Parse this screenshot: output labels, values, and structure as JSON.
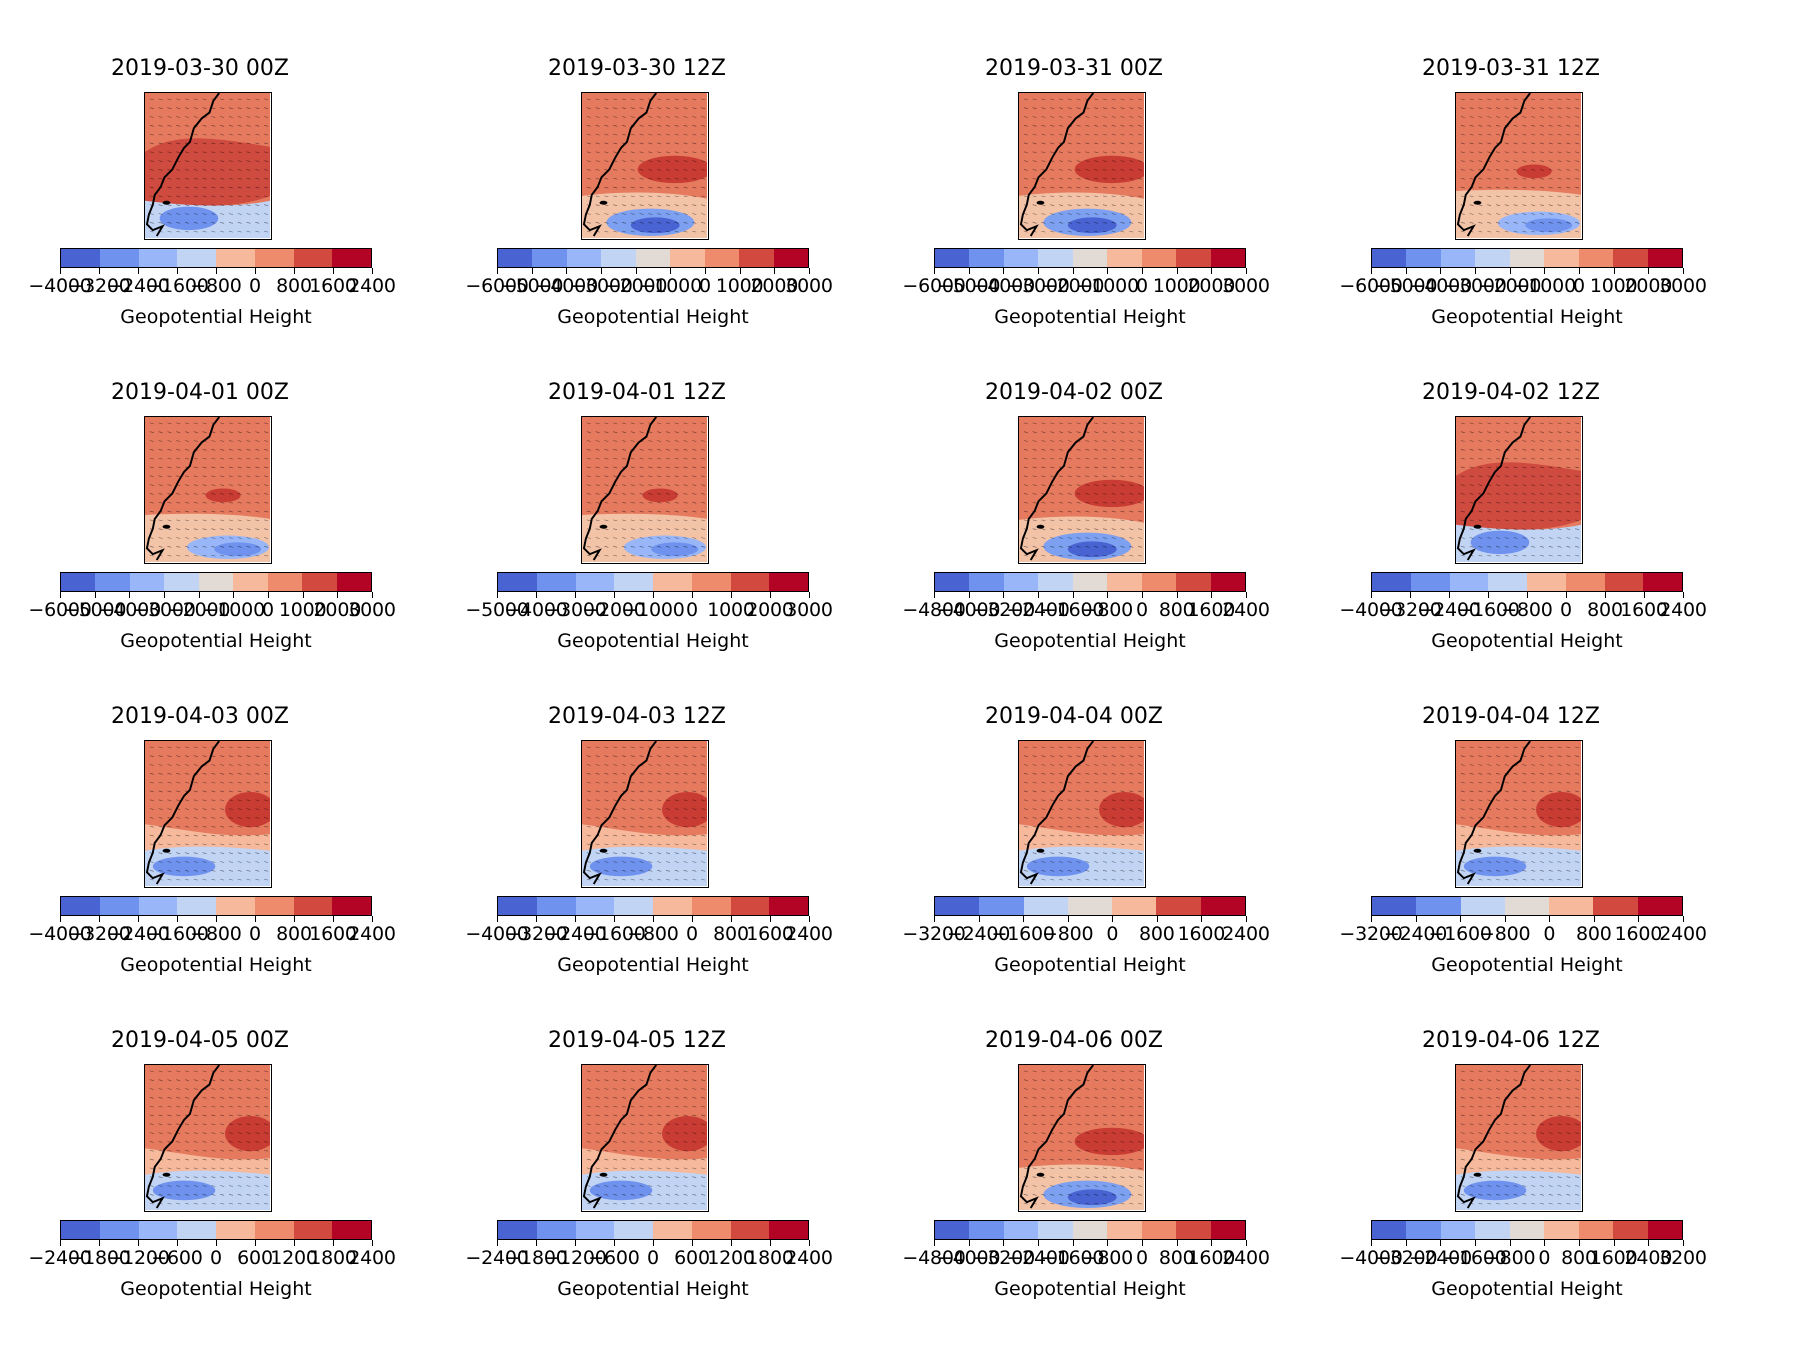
{
  "figure": {
    "colorbar_label": "Geopotential Height",
    "palette": [
      "#4a63d3",
      "#6f92ee",
      "#99b7f8",
      "#c2d4f4",
      "#e2dad5",
      "#f6b99c",
      "#ed8b6c",
      "#d24a3f",
      "#b40426"
    ]
  },
  "chart_data": [
    {
      "type": "heatmap",
      "title": "2019-03-30 00Z",
      "colorbar_label": "Geopotential Height",
      "levels": [
        "−4000",
        "−3200",
        "−2400",
        "−1600",
        "−800",
        "0",
        "800",
        "1600",
        "2400"
      ],
      "pattern": 0
    },
    {
      "type": "heatmap",
      "title": "2019-03-30 12Z",
      "colorbar_label": "Geopotential Height",
      "levels": [
        "−6000",
        "−5000",
        "−4000",
        "−3000",
        "−2000",
        "−1000",
        "0",
        "1000",
        "2000",
        "3000"
      ],
      "pattern": 1
    },
    {
      "type": "heatmap",
      "title": "2019-03-31 00Z",
      "colorbar_label": "Geopotential Height",
      "levels": [
        "−6000",
        "−5000",
        "−4000",
        "−3000",
        "−2000",
        "−1000",
        "0",
        "1000",
        "2000",
        "3000"
      ],
      "pattern": 1
    },
    {
      "type": "heatmap",
      "title": "2019-03-31 12Z",
      "colorbar_label": "Geopotential Height",
      "levels": [
        "−6000",
        "−5000",
        "−4000",
        "−3000",
        "−2000",
        "−1000",
        "0",
        "1000",
        "2000",
        "3000"
      ],
      "pattern": 2
    },
    {
      "type": "heatmap",
      "title": "2019-04-01 00Z",
      "colorbar_label": "Geopotential Height",
      "levels": [
        "−6000",
        "−5000",
        "−4000",
        "−3000",
        "−2000",
        "−1000",
        "0",
        "1000",
        "2000",
        "3000"
      ],
      "pattern": 2
    },
    {
      "type": "heatmap",
      "title": "2019-04-01 12Z",
      "colorbar_label": "Geopotential Height",
      "levels": [
        "−5000",
        "−4000",
        "−3000",
        "−2000",
        "−1000",
        "0",
        "1000",
        "2000",
        "3000"
      ],
      "pattern": 2
    },
    {
      "type": "heatmap",
      "title": "2019-04-02 00Z",
      "colorbar_label": "Geopotential Height",
      "levels": [
        "−4800",
        "−4000",
        "−3200",
        "−2400",
        "−1600",
        "−800",
        "0",
        "800",
        "1600",
        "2400"
      ],
      "pattern": 1
    },
    {
      "type": "heatmap",
      "title": "2019-04-02 12Z",
      "colorbar_label": "Geopotential Height",
      "levels": [
        "−4000",
        "−3200",
        "−2400",
        "−1600",
        "−800",
        "0",
        "800",
        "1600",
        "2400"
      ],
      "pattern": 0
    },
    {
      "type": "heatmap",
      "title": "2019-04-03 00Z",
      "colorbar_label": "Geopotential Height",
      "levels": [
        "−4000",
        "−3200",
        "−2400",
        "−1600",
        "−800",
        "0",
        "800",
        "1600",
        "2400"
      ],
      "pattern": 3
    },
    {
      "type": "heatmap",
      "title": "2019-04-03 12Z",
      "colorbar_label": "Geopotential Height",
      "levels": [
        "−4000",
        "−3200",
        "−2400",
        "−1600",
        "−800",
        "0",
        "800",
        "1600",
        "2400"
      ],
      "pattern": 3
    },
    {
      "type": "heatmap",
      "title": "2019-04-04 00Z",
      "colorbar_label": "Geopotential Height",
      "levels": [
        "−3200",
        "−2400",
        "−1600",
        "−800",
        "0",
        "800",
        "1600",
        "2400"
      ],
      "pattern": 3
    },
    {
      "type": "heatmap",
      "title": "2019-04-04 12Z",
      "colorbar_label": "Geopotential Height",
      "levels": [
        "−3200",
        "−2400",
        "−1600",
        "−800",
        "0",
        "800",
        "1600",
        "2400"
      ],
      "pattern": 3
    },
    {
      "type": "heatmap",
      "title": "2019-04-05 00Z",
      "colorbar_label": "Geopotential Height",
      "levels": [
        "−2400",
        "−1800",
        "−1200",
        "−600",
        "0",
        "600",
        "1200",
        "1800",
        "2400"
      ],
      "pattern": 3
    },
    {
      "type": "heatmap",
      "title": "2019-04-05 12Z",
      "colorbar_label": "Geopotential Height",
      "levels": [
        "−2400",
        "−1800",
        "−1200",
        "−600",
        "0",
        "600",
        "1200",
        "1800",
        "2400"
      ],
      "pattern": 3
    },
    {
      "type": "heatmap",
      "title": "2019-04-06 00Z",
      "colorbar_label": "Geopotential Height",
      "levels": [
        "−4800",
        "−4000",
        "−3200",
        "−2400",
        "−1600",
        "−800",
        "0",
        "800",
        "1600",
        "2400"
      ],
      "pattern": 1
    },
    {
      "type": "heatmap",
      "title": "2019-04-06 12Z",
      "colorbar_label": "Geopotential Height",
      "levels": [
        "−4000",
        "−3200",
        "−2400",
        "−1600",
        "−800",
        "0",
        "800",
        "1600",
        "2400",
        "3200"
      ],
      "pattern": 3
    }
  ]
}
